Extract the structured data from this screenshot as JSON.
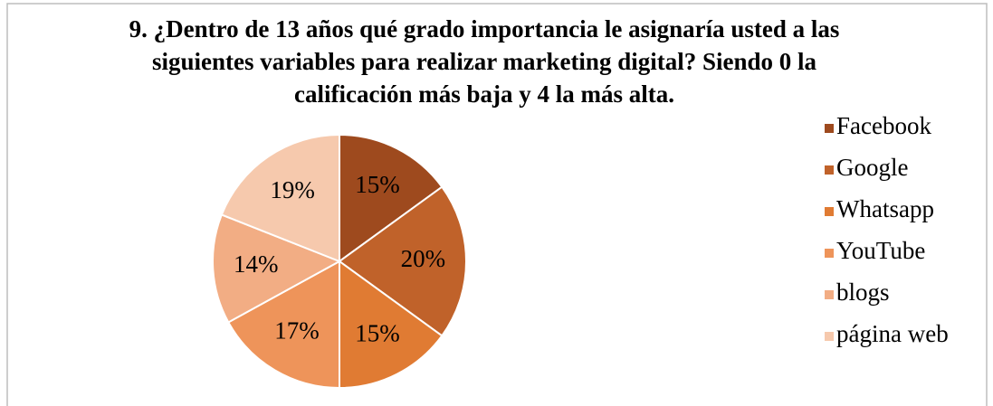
{
  "chart_data": {
    "type": "pie",
    "title": "9. ¿Dentro de 13 años qué grado importancia le asignaría usted a las siguientes variables para realizar marketing digital? Siendo 0 la calificación más baja y 4 la más alta.",
    "categories": [
      "Facebook",
      "Google",
      "Whatsapp",
      "YouTube",
      "blogs",
      "página web"
    ],
    "values": [
      15,
      20,
      15,
      17,
      14,
      19
    ],
    "value_labels": [
      "15%",
      "20%",
      "15%",
      "17%",
      "14%",
      "19%"
    ],
    "colors": [
      "#9e4a1e",
      "#c0622a",
      "#e07b33",
      "#ee945a",
      "#f2ad84",
      "#f6c9ad"
    ],
    "legend": "right"
  }
}
